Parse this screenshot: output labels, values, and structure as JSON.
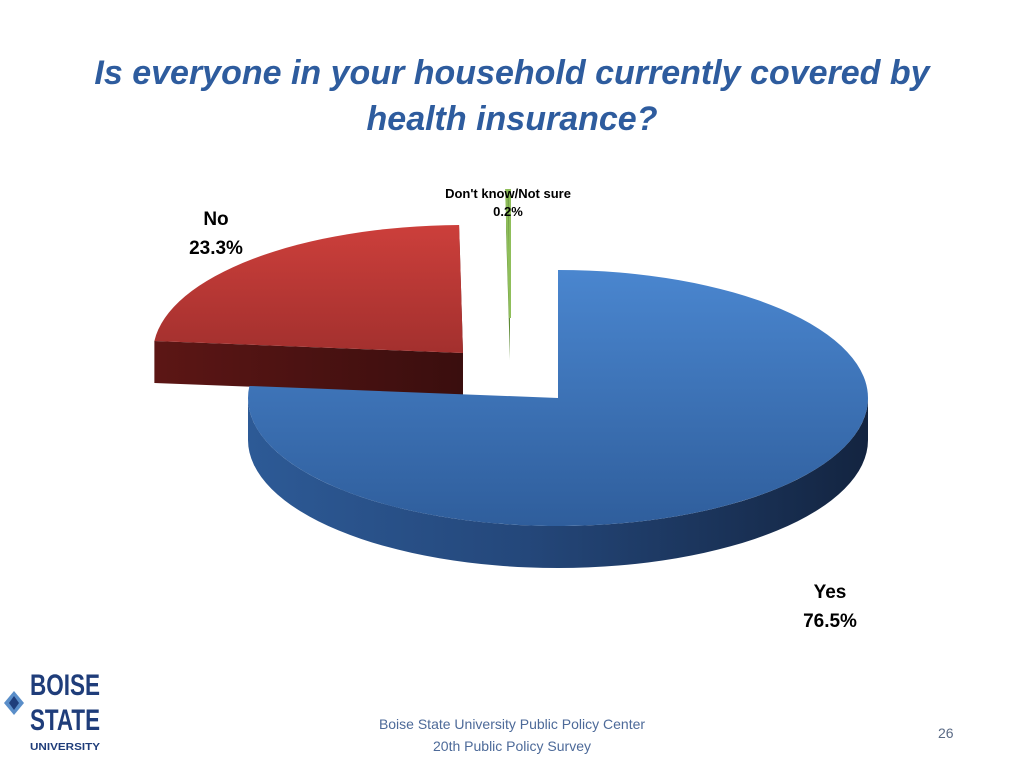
{
  "title": {
    "line1": "Is everyone in your household currently covered by",
    "line2": "health insurance?"
  },
  "chart_data": {
    "type": "pie",
    "style": "3d-exploded",
    "title": "Is everyone in your household currently covered by health insurance?",
    "slices": [
      {
        "label": "Yes",
        "value": 76.5,
        "value_label": "76.5%",
        "color": "#3f7cc4"
      },
      {
        "label": "No",
        "value": 23.3,
        "value_label": "23.3%",
        "color": "#c03a38"
      },
      {
        "label": "Don't know/Not sure",
        "value": 0.2,
        "value_label": "0.2%",
        "color": "#8fbe5a"
      }
    ],
    "legend": "none"
  },
  "footer": {
    "line1": "Boise State University  Public Policy Center",
    "line2": "20th Public Policy Survey"
  },
  "page_number": "26",
  "logo": {
    "line1": "BOISE",
    "line2": "STATE",
    "line3": "UNIVERSITY",
    "color": "#1f3d7a"
  }
}
